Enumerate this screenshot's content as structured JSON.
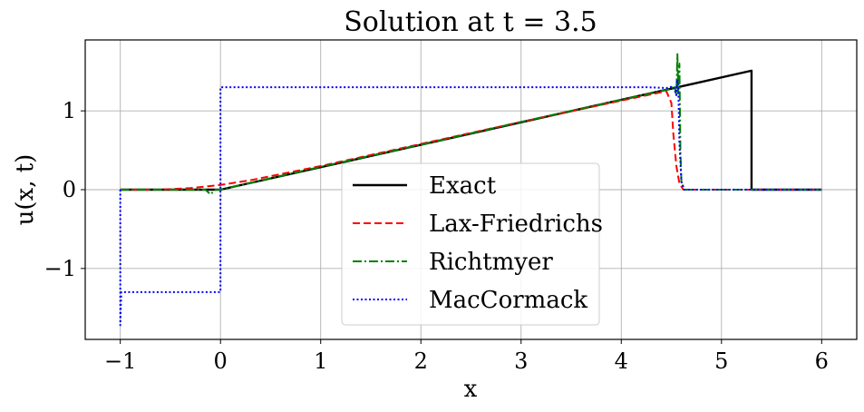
{
  "chart_data": {
    "type": "line",
    "title": "Solution at t = 3.5",
    "xlabel": "x",
    "ylabel": "u(x, t)",
    "xlim": [
      -1.35,
      6.35
    ],
    "ylim": [
      -1.9,
      1.9
    ],
    "xticks": [
      -1,
      0,
      1,
      2,
      3,
      4,
      5,
      6
    ],
    "xtick_labels": [
      "−1",
      "0",
      "1",
      "2",
      "3",
      "4",
      "5",
      "6"
    ],
    "yticks": [
      -1,
      0,
      1
    ],
    "ytick_labels": [
      "−1",
      "0",
      "1"
    ],
    "grid": true,
    "legend_position": "lower center",
    "series": [
      {
        "name": "Exact",
        "color": "#000000",
        "style": "solid",
        "x": [
          -1.0,
          0.0,
          5.3,
          5.3,
          6.0
        ],
        "y": [
          0.0,
          0.0,
          1.51,
          0.0,
          0.0
        ]
      },
      {
        "name": "Lax-Friedrichs",
        "color": "#ff0000",
        "style": "dashed",
        "x": [
          -1.0,
          -0.6,
          -0.3,
          0.0,
          0.3,
          1.0,
          2.0,
          3.0,
          4.0,
          4.45,
          4.5,
          4.52,
          4.55,
          4.58,
          4.62,
          6.0
        ],
        "y": [
          0.0,
          0.0,
          0.02,
          0.06,
          0.12,
          0.3,
          0.58,
          0.86,
          1.13,
          1.25,
          1.1,
          0.7,
          0.3,
          0.08,
          0.0,
          0.0
        ]
      },
      {
        "name": "Richtmyer",
        "color": "#008000",
        "style": "dashdot",
        "x": [
          -1.0,
          -0.15,
          -0.1,
          -0.05,
          0.0,
          1.0,
          2.0,
          3.0,
          4.0,
          4.5,
          4.53,
          4.55,
          4.56,
          4.57,
          4.58,
          4.59,
          4.6,
          4.63,
          6.0
        ],
        "y": [
          0.0,
          0.0,
          -0.06,
          0.0,
          0.0,
          0.29,
          0.57,
          0.86,
          1.14,
          1.28,
          1.32,
          1.2,
          1.72,
          1.22,
          1.6,
          0.5,
          0.1,
          0.0,
          0.0
        ]
      },
      {
        "name": "MacCormack",
        "color": "#0000ff",
        "style": "dotted",
        "x": [
          -1.0,
          -1.0,
          -0.99,
          -0.97,
          -0.95,
          0.0,
          0.0,
          4.25,
          4.45,
          4.52,
          4.55,
          4.56,
          4.57,
          4.58,
          4.6,
          4.63,
          6.0
        ],
        "y": [
          0.0,
          -1.72,
          -1.3,
          -1.3,
          -1.3,
          -1.3,
          1.3,
          1.3,
          1.29,
          1.31,
          1.2,
          1.4,
          1.25,
          0.6,
          0.1,
          0.0,
          0.0
        ]
      }
    ]
  }
}
